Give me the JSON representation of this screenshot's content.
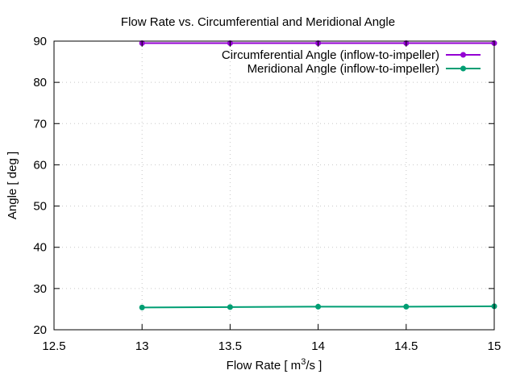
{
  "chart_data": {
    "type": "line",
    "title": "Flow Rate vs. Circumferential and Meridional Angle",
    "xlabel_prefix": "Flow Rate [ m",
    "xlabel_sup": "3",
    "xlabel_suffix": "/s ]",
    "ylabel": "Angle [ deg ]",
    "xlim": [
      12.5,
      15
    ],
    "ylim": [
      20,
      90
    ],
    "xticks": [
      12.5,
      13,
      13.5,
      14,
      14.5,
      15
    ],
    "xtick_labels": [
      "12.5",
      "13",
      "13.5",
      "14",
      "14.5",
      "15"
    ],
    "yticks": [
      20,
      30,
      40,
      50,
      60,
      70,
      80,
      90
    ],
    "ytick_labels": [
      "20",
      "30",
      "40",
      "50",
      "60",
      "70",
      "80",
      "90"
    ],
    "grid": true,
    "legend_position": "top-right",
    "x": [
      13,
      13.5,
      14,
      14.5,
      15
    ],
    "series": [
      {
        "name": "Circumferential Angle (inflow-to-impeller)",
        "color": "#9400d3",
        "values": [
          89.5,
          89.5,
          89.5,
          89.5,
          89.5
        ]
      },
      {
        "name": "Meridional Angle (inflow-to-impeller)",
        "color": "#009e73",
        "values": [
          25.4,
          25.5,
          25.6,
          25.6,
          25.7
        ]
      }
    ]
  }
}
